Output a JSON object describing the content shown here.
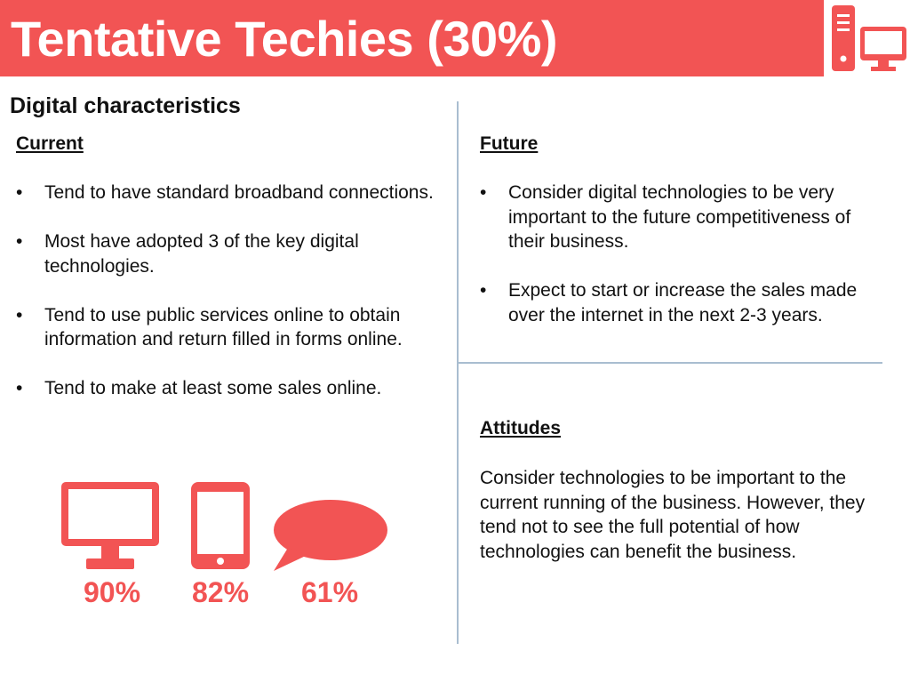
{
  "header": {
    "title": "Tentative Techies (30%)"
  },
  "section": {
    "heading": "Digital characteristics"
  },
  "current": {
    "label": "Current",
    "items": [
      "Tend to have standard broadband connections.",
      "Most have adopted 3 of the key digital technologies.",
      "Tend to use public services online to obtain information and return filled in forms online.",
      "Tend to make at least some sales online."
    ]
  },
  "future": {
    "label": "Future",
    "items": [
      "Consider digital technologies to be very important to the future competitiveness of their business.",
      "Expect to start or increase the sales made over the internet in the next 2-3 years."
    ]
  },
  "attitudes": {
    "label": "Attitudes",
    "text": "Consider technologies to be important to the current running of the business. However, they  tend not to see the full potential of how technologies can benefit the business."
  },
  "stats": [
    {
      "icon": "desktop-monitor-icon",
      "value": "90%"
    },
    {
      "icon": "tablet-icon",
      "value": "82%"
    },
    {
      "icon": "speech-bubble-icon",
      "value": "61%"
    }
  ],
  "colors": {
    "accent": "#f25454",
    "divider": "#a9bdd0"
  },
  "header_icon": "desktop-computer-icon"
}
